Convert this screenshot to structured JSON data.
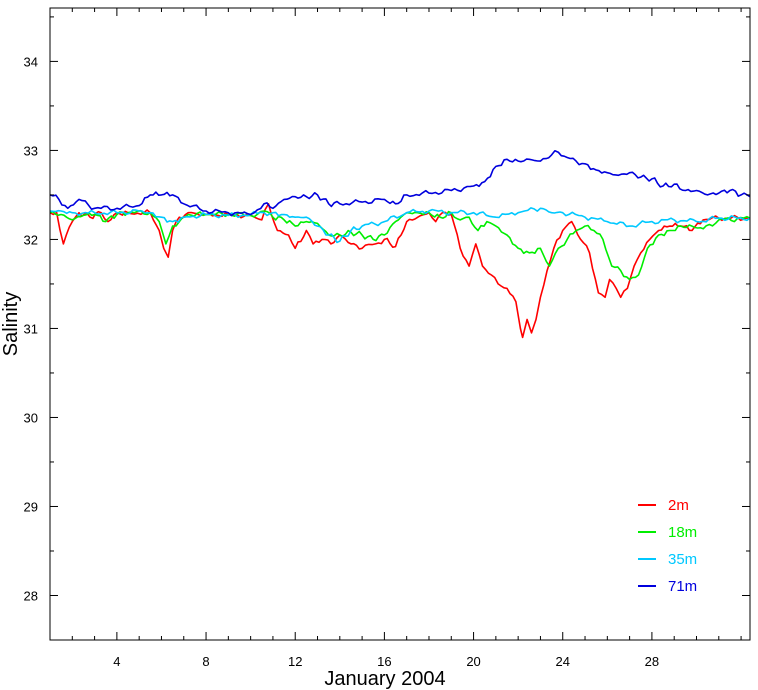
{
  "chart_data": {
    "type": "line",
    "xlabel": "January 2004",
    "ylabel": "Salinity",
    "xlim": [
      1,
      32.4
    ],
    "ylim": [
      27.5,
      34.6
    ],
    "xticks": [
      4,
      8,
      12,
      16,
      20,
      24,
      28
    ],
    "yticks": [
      28,
      29,
      30,
      31,
      32,
      33,
      34
    ],
    "legend_position": "bottom-right",
    "series": [
      {
        "name": "2m",
        "color": "#ff0000",
        "x": [
          1,
          1.3,
          1.6,
          2,
          2.3,
          2.8,
          3.3,
          3.6,
          4,
          4.5,
          5.5,
          5.9,
          6.1,
          6.3,
          6.5,
          6.8,
          7.2,
          8,
          9,
          10,
          10.5,
          10.8,
          11.2,
          11.7,
          12,
          12.5,
          12.8,
          13.2,
          13.6,
          14,
          14.5,
          15,
          15.6,
          16,
          16.5,
          17,
          17.5,
          18,
          18.3,
          18.6,
          19,
          19.4,
          19.8,
          20.1,
          20.4,
          20.8,
          21.1,
          21.5,
          21.9,
          22.1,
          22.2,
          22.4,
          22.6,
          22.8,
          23,
          23.3,
          23.6,
          24,
          24.4,
          24.8,
          25.2,
          25.6,
          25.9,
          26.1,
          26.4,
          26.6,
          26.9,
          27.2,
          27.5,
          27.9,
          28.3,
          28.8,
          29.3,
          29.8,
          30.3,
          31,
          32.4
        ],
        "y": [
          32.3,
          32.3,
          31.95,
          32.2,
          32.3,
          32.25,
          32.3,
          32.2,
          32.3,
          32.3,
          32.3,
          32.1,
          31.9,
          31.8,
          32.1,
          32.25,
          32.3,
          32.28,
          32.28,
          32.27,
          32.22,
          32.4,
          32.1,
          32.05,
          31.9,
          32.1,
          31.95,
          32.0,
          31.95,
          32.05,
          31.95,
          31.9,
          31.95,
          32.0,
          31.92,
          32.2,
          32.25,
          32.3,
          32.2,
          32.3,
          32.28,
          31.9,
          31.7,
          31.95,
          31.7,
          31.6,
          31.5,
          31.45,
          31.3,
          31.0,
          30.9,
          31.1,
          30.95,
          31.1,
          31.35,
          31.65,
          31.9,
          32.1,
          32.2,
          32.0,
          31.85,
          31.4,
          31.35,
          31.55,
          31.45,
          31.35,
          31.45,
          31.7,
          31.85,
          32.0,
          32.1,
          32.15,
          32.15,
          32.1,
          32.22,
          32.24,
          32.24
        ]
      },
      {
        "name": "18m",
        "color": "#00ee00",
        "x": [
          1,
          1.5,
          2,
          2.5,
          3,
          3.5,
          4,
          4.5,
          5.5,
          5.9,
          6.2,
          6.5,
          6.8,
          7.2,
          8,
          9,
          10,
          10.6,
          11,
          11.5,
          12,
          12.5,
          13,
          13.5,
          14,
          14.5,
          15,
          15.5,
          16,
          16.5,
          17,
          17.5,
          18,
          18.5,
          19,
          19.4,
          19.8,
          20.2,
          20.6,
          21,
          21.5,
          22,
          22.5,
          23,
          23.4,
          23.8,
          24.2,
          24.6,
          25,
          25.4,
          25.8,
          26.2,
          26.6,
          27,
          27.4,
          27.8,
          28.3,
          28.8,
          29.3,
          29.8,
          30.3,
          31,
          32.4
        ],
        "y": [
          32.3,
          32.28,
          32.22,
          32.27,
          32.28,
          32.2,
          32.28,
          32.3,
          32.3,
          32.2,
          31.95,
          32.15,
          32.2,
          32.28,
          32.28,
          32.28,
          32.27,
          32.32,
          32.25,
          32.22,
          32.15,
          32.2,
          32.18,
          32.05,
          32.05,
          32.08,
          32.05,
          32.0,
          32.05,
          32.2,
          32.3,
          32.3,
          32.3,
          32.25,
          32.3,
          32.22,
          32.25,
          32.1,
          32.2,
          32.15,
          32.05,
          31.9,
          31.85,
          31.9,
          31.7,
          31.9,
          32.0,
          32.1,
          32.15,
          32.1,
          32.0,
          31.7,
          31.65,
          31.55,
          31.6,
          31.9,
          32.05,
          32.1,
          32.15,
          32.15,
          32.12,
          32.22,
          32.24
        ]
      },
      {
        "name": "35m",
        "color": "#00c8ff",
        "x": [
          1,
          1.5,
          2,
          3,
          4,
          5,
          5.5,
          6,
          6.5,
          7,
          8,
          9,
          10,
          10.6,
          11,
          11.5,
          12,
          12.5,
          13,
          13.5,
          14,
          14.5,
          15,
          16,
          17,
          18,
          19,
          20,
          21,
          22,
          23,
          23.5,
          24,
          25,
          26,
          27,
          28,
          29,
          30,
          31,
          32.4
        ],
        "y": [
          32.32,
          32.32,
          32.3,
          32.3,
          32.3,
          32.32,
          32.3,
          32.25,
          32.2,
          32.25,
          32.28,
          32.27,
          32.28,
          32.3,
          32.3,
          32.28,
          32.25,
          32.25,
          32.15,
          32.05,
          31.98,
          32.1,
          32.15,
          32.2,
          32.3,
          32.32,
          32.3,
          32.3,
          32.25,
          32.3,
          32.35,
          32.3,
          32.3,
          32.25,
          32.2,
          32.15,
          32.2,
          32.22,
          32.2,
          32.24,
          32.24
        ]
      },
      {
        "name": "71m",
        "color": "#0000dd",
        "x": [
          1,
          1.4,
          1.8,
          2.3,
          3,
          4,
          5,
          5.5,
          6,
          6.5,
          7,
          8,
          9,
          10,
          10.6,
          11,
          11.5,
          12,
          12.5,
          13,
          13.5,
          14,
          15,
          16,
          16.5,
          17,
          18,
          19,
          20,
          20.5,
          21,
          21.5,
          22,
          22.5,
          23,
          23.5,
          23.8,
          24.2,
          24.6,
          25,
          25.5,
          26,
          26.5,
          27,
          27.5,
          28,
          28.5,
          29,
          29.5,
          30,
          30.5,
          31,
          31.5,
          32,
          32.4
        ],
        "y": [
          32.5,
          32.45,
          32.35,
          32.45,
          32.35,
          32.35,
          32.38,
          32.5,
          32.5,
          32.5,
          32.4,
          32.32,
          32.3,
          32.28,
          32.4,
          32.35,
          32.45,
          32.48,
          32.48,
          32.5,
          32.4,
          32.4,
          32.42,
          32.45,
          32.4,
          32.5,
          32.52,
          32.55,
          32.6,
          32.65,
          32.82,
          32.9,
          32.88,
          32.9,
          32.88,
          32.95,
          32.98,
          32.92,
          32.88,
          32.85,
          32.78,
          32.75,
          32.72,
          32.75,
          32.7,
          32.68,
          32.6,
          32.62,
          32.55,
          32.55,
          32.5,
          32.52,
          32.55,
          32.5,
          32.48
        ]
      }
    ]
  }
}
